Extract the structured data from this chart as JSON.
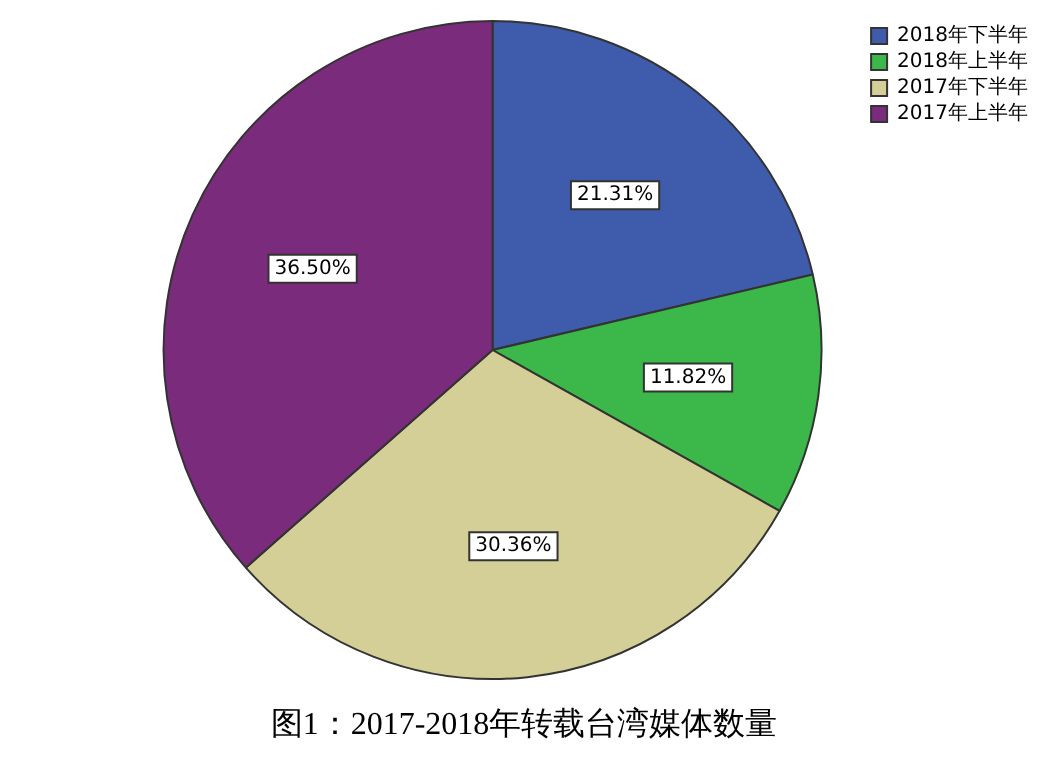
{
  "chart_data": {
    "type": "pie",
    "title": "图1：2017-2018年转载台湾媒体数量",
    "categories": [
      "2018年下半年",
      "2018年上半年",
      "2017年下半年",
      "2017年上半年"
    ],
    "values": [
      21.31,
      11.82,
      30.36,
      36.5
    ],
    "colors": [
      "#3f5bab",
      "#3cb84a",
      "#d4cf96",
      "#7b2b7b"
    ],
    "value_labels": [
      "21.31%",
      "11.82%",
      "30.36%",
      "36.50%"
    ],
    "legend": "top right"
  }
}
